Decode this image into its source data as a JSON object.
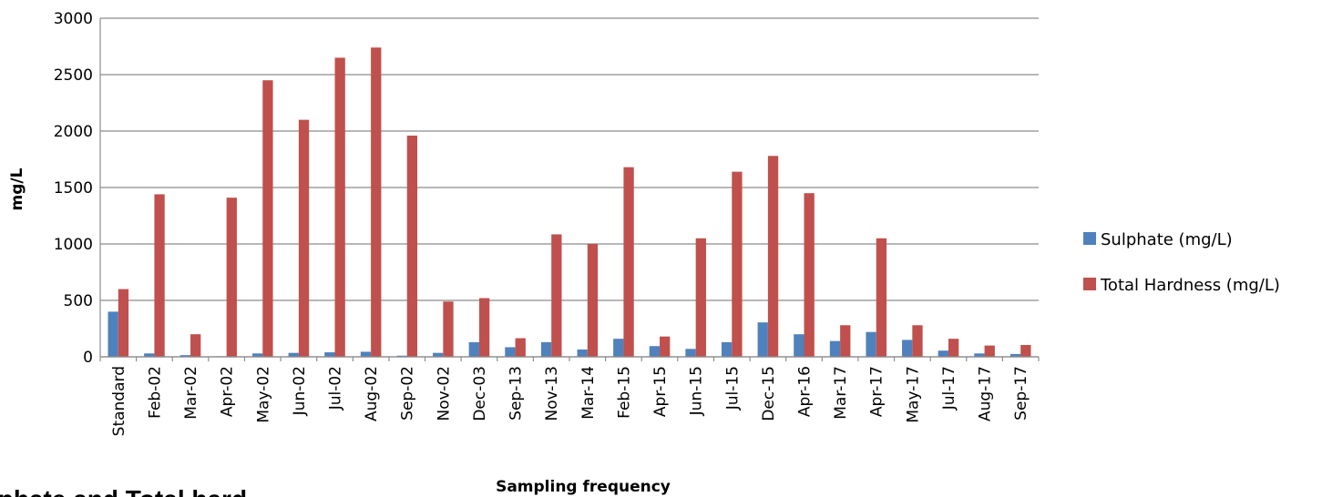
{
  "chart_data": {
    "type": "bar",
    "title": "",
    "xlabel": "Sampling frequency",
    "ylabel": "mg/L",
    "ylim": [
      0,
      3000
    ],
    "yticks": [
      0,
      500,
      1000,
      1500,
      2000,
      2500,
      3000
    ],
    "grid": true,
    "legend_position": "right",
    "categories": [
      "Standard",
      "Feb-02",
      "Mar-02",
      "Apr-02",
      "May-02",
      "Jun-02",
      "Jul-02",
      "Aug-02",
      "Sep-02",
      "Nov-02",
      "Dec-03",
      "Sep-13",
      "Nov-13",
      "Mar-14",
      "Feb-15",
      "Apr-15",
      "Jun-15",
      "Jul-15",
      "Dec-15",
      "Apr-16",
      "Mar-17",
      "Apr-17",
      "May-17",
      "Jul-17",
      "Aug-17",
      "Sep-17"
    ],
    "series": [
      {
        "name": "Sulphate (mg/L)",
        "color": "#4F81BD",
        "values": [
          400,
          30,
          15,
          5,
          30,
          35,
          40,
          45,
          10,
          35,
          130,
          85,
          130,
          65,
          160,
          95,
          70,
          130,
          305,
          200,
          140,
          220,
          150,
          55,
          30,
          25
        ]
      },
      {
        "name": "Total Hardness (mg/L)",
        "color": "#C0504D",
        "values": [
          600,
          1440,
          200,
          1410,
          2450,
          2100,
          2650,
          2740,
          1960,
          490,
          520,
          165,
          1085,
          1000,
          1680,
          180,
          1050,
          1640,
          1780,
          1450,
          280,
          1050,
          280,
          160,
          100,
          105
        ]
      }
    ]
  },
  "cut_off_caption": "lphate and Total hard"
}
